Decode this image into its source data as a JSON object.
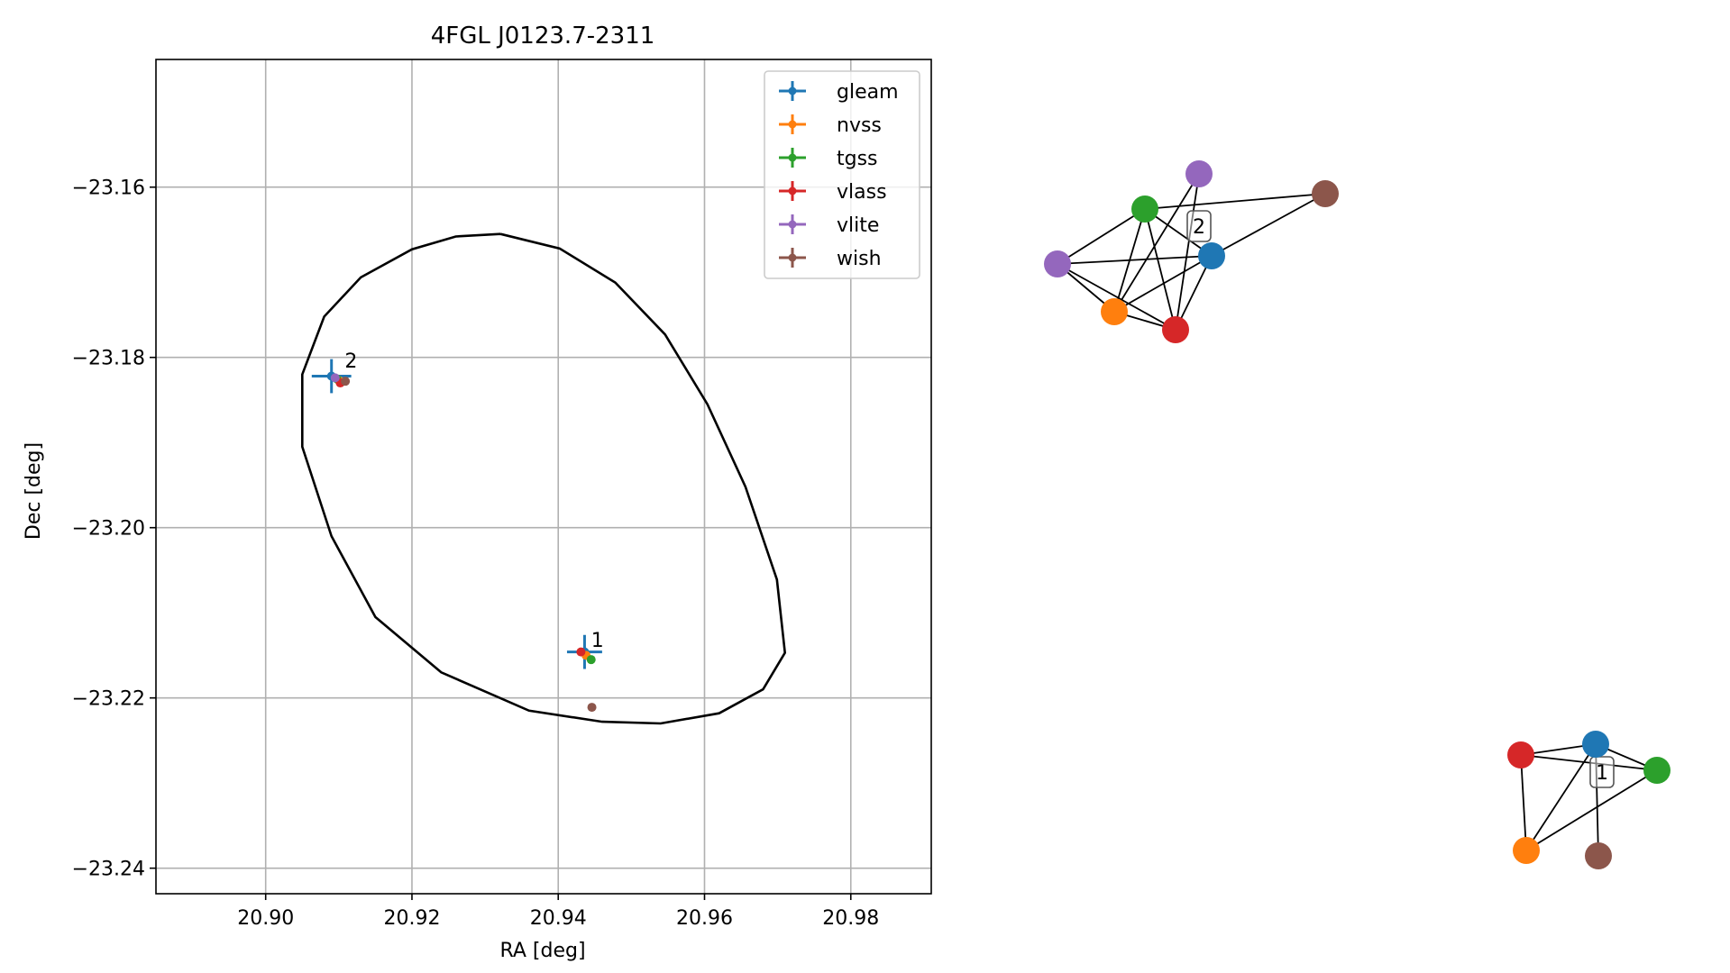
{
  "chart_data": [
    {
      "type": "scatter",
      "title": "4FGL J0123.7-2311",
      "xlabel": "RA [deg]",
      "ylabel": "Dec [deg]",
      "xlim": [
        20.885,
        20.991
      ],
      "ylim": [
        -23.243,
        -23.145
      ],
      "xticks": [
        {
          "value": 20.9,
          "label": "20.90"
        },
        {
          "value": 20.92,
          "label": "20.92"
        },
        {
          "value": 20.94,
          "label": "20.94"
        },
        {
          "value": 20.96,
          "label": "20.96"
        },
        {
          "value": 20.98,
          "label": "20.98"
        }
      ],
      "yticks": [
        {
          "value": -23.16,
          "label": "−23.16"
        },
        {
          "value": -23.18,
          "label": "−23.18"
        },
        {
          "value": -23.2,
          "label": "−23.20"
        },
        {
          "value": -23.22,
          "label": "−23.22"
        },
        {
          "value": -23.24,
          "label": "−23.24"
        }
      ],
      "grid": true,
      "legend_position": "top-right",
      "series": [
        {
          "name": "gleam",
          "color": "#1f77b4",
          "points": [
            {
              "ra": 20.909,
              "dec": -23.1822,
              "ra_err": 0.0027,
              "dec_err": 0.002
            },
            {
              "ra": 20.9436,
              "dec": -23.2146,
              "ra_err": 0.0024,
              "dec_err": 0.002
            }
          ]
        },
        {
          "name": "nvss",
          "color": "#ff7f0e",
          "points": [
            {
              "ra": 20.91,
              "dec": -23.1827,
              "ra_err": 0.0002,
              "dec_err": 0.0002
            },
            {
              "ra": 20.9438,
              "dec": -23.215,
              "ra_err": 0.0002,
              "dec_err": 0.0002
            }
          ]
        },
        {
          "name": "tgss",
          "color": "#2ca02c",
          "points": [
            {
              "ra": 20.9097,
              "dec": -23.1825,
              "ra_err": 0.0003,
              "dec_err": 0.0003
            },
            {
              "ra": 20.9445,
              "dec": -23.2155,
              "ra_err": 0.0003,
              "dec_err": 0.0003
            }
          ]
        },
        {
          "name": "vlass",
          "color": "#d62728",
          "points": [
            {
              "ra": 20.9102,
              "dec": -23.183,
              "ra_err": 0.0001,
              "dec_err": 0.0001
            },
            {
              "ra": 20.9431,
              "dec": -23.2146,
              "ra_err": 0.0001,
              "dec_err": 0.0001
            }
          ]
        },
        {
          "name": "vlite",
          "color": "#9467bd",
          "points": [
            {
              "ra": 20.9095,
              "dec": -23.1824,
              "ra_err": 0.0004,
              "dec_err": 0.0004
            }
          ]
        },
        {
          "name": "wish",
          "color": "#8c564b",
          "points": [
            {
              "ra": 20.9109,
              "dec": -23.1828,
              "ra_err": 0.0001,
              "dec_err": 0.0001
            },
            {
              "ra": 20.9446,
              "dec": -23.2211,
              "ra_err": 0.0001,
              "dec_err": 0.0001
            }
          ]
        }
      ],
      "ellipse": {
        "color": "#000000",
        "points": [
          [
            20.9321,
            -23.1655
          ],
          [
            20.9402,
            -23.1672
          ],
          [
            20.9478,
            -23.1712
          ],
          [
            20.9546,
            -23.1773
          ],
          [
            20.9604,
            -23.1855
          ],
          [
            20.9656,
            -23.1952
          ],
          [
            20.9699,
            -23.2061
          ],
          [
            20.971,
            -23.2147
          ],
          [
            20.968,
            -23.219
          ],
          [
            20.962,
            -23.2218
          ],
          [
            20.954,
            -23.223
          ],
          [
            20.946,
            -23.2228
          ],
          [
            20.936,
            -23.2215
          ],
          [
            20.924,
            -23.217
          ],
          [
            20.915,
            -23.2105
          ],
          [
            20.909,
            -23.201
          ],
          [
            20.905,
            -23.1905
          ],
          [
            20.905,
            -23.182
          ],
          [
            20.908,
            -23.1752
          ],
          [
            20.913,
            -23.1706
          ],
          [
            20.92,
            -23.1673
          ],
          [
            20.926,
            -23.1658
          ],
          [
            20.9321,
            -23.1655
          ]
        ]
      },
      "annotations": [
        {
          "text": "2",
          "ra": 20.9108,
          "dec": -23.1812
        },
        {
          "text": "1",
          "ra": 20.9445,
          "dec": -23.214
        }
      ]
    },
    {
      "type": "network",
      "groups": [
        {
          "label": "2",
          "nodes": [
            {
              "id": "gleam",
              "color": "#1f77b4"
            },
            {
              "id": "nvss",
              "color": "#ff7f0e"
            },
            {
              "id": "tgss",
              "color": "#2ca02c"
            },
            {
              "id": "vlass",
              "color": "#d62728"
            },
            {
              "id": "vlite",
              "color": "#9467bd"
            },
            {
              "id": "wish",
              "color": "#8c564b"
            }
          ],
          "edges": [
            [
              "tgss",
              "vlite"
            ],
            [
              "tgss",
              "wish"
            ],
            [
              "tgss",
              "nvss"
            ],
            [
              "tgss",
              "vlass"
            ],
            [
              "tgss",
              "gleam"
            ],
            [
              "vlite",
              "gleam"
            ],
            [
              "vlite",
              "nvss"
            ],
            [
              "vlite",
              "vlass"
            ],
            [
              "gleam",
              "wish"
            ],
            [
              "gleam",
              "nvss"
            ],
            [
              "gleam",
              "vlass"
            ],
            [
              "nvss",
              "vlass"
            ],
            [
              "vlass",
              "vlite_top"
            ],
            [
              "nvss",
              "vlite_top"
            ]
          ],
          "extra_nodes": [
            {
              "id": "vlite_top",
              "color": "#9467bd"
            }
          ]
        },
        {
          "label": "1",
          "nodes": [
            {
              "id": "gleam",
              "color": "#1f77b4"
            },
            {
              "id": "nvss",
              "color": "#ff7f0e"
            },
            {
              "id": "tgss",
              "color": "#2ca02c"
            },
            {
              "id": "vlass",
              "color": "#d62728"
            },
            {
              "id": "wish",
              "color": "#8c564b"
            }
          ],
          "edges": [
            [
              "vlass",
              "gleam"
            ],
            [
              "vlass",
              "tgss"
            ],
            [
              "vlass",
              "nvss"
            ],
            [
              "gleam",
              "tgss"
            ],
            [
              "gleam",
              "nvss"
            ],
            [
              "gleam",
              "wish"
            ],
            [
              "nvss",
              "tgss"
            ]
          ]
        }
      ]
    }
  ]
}
